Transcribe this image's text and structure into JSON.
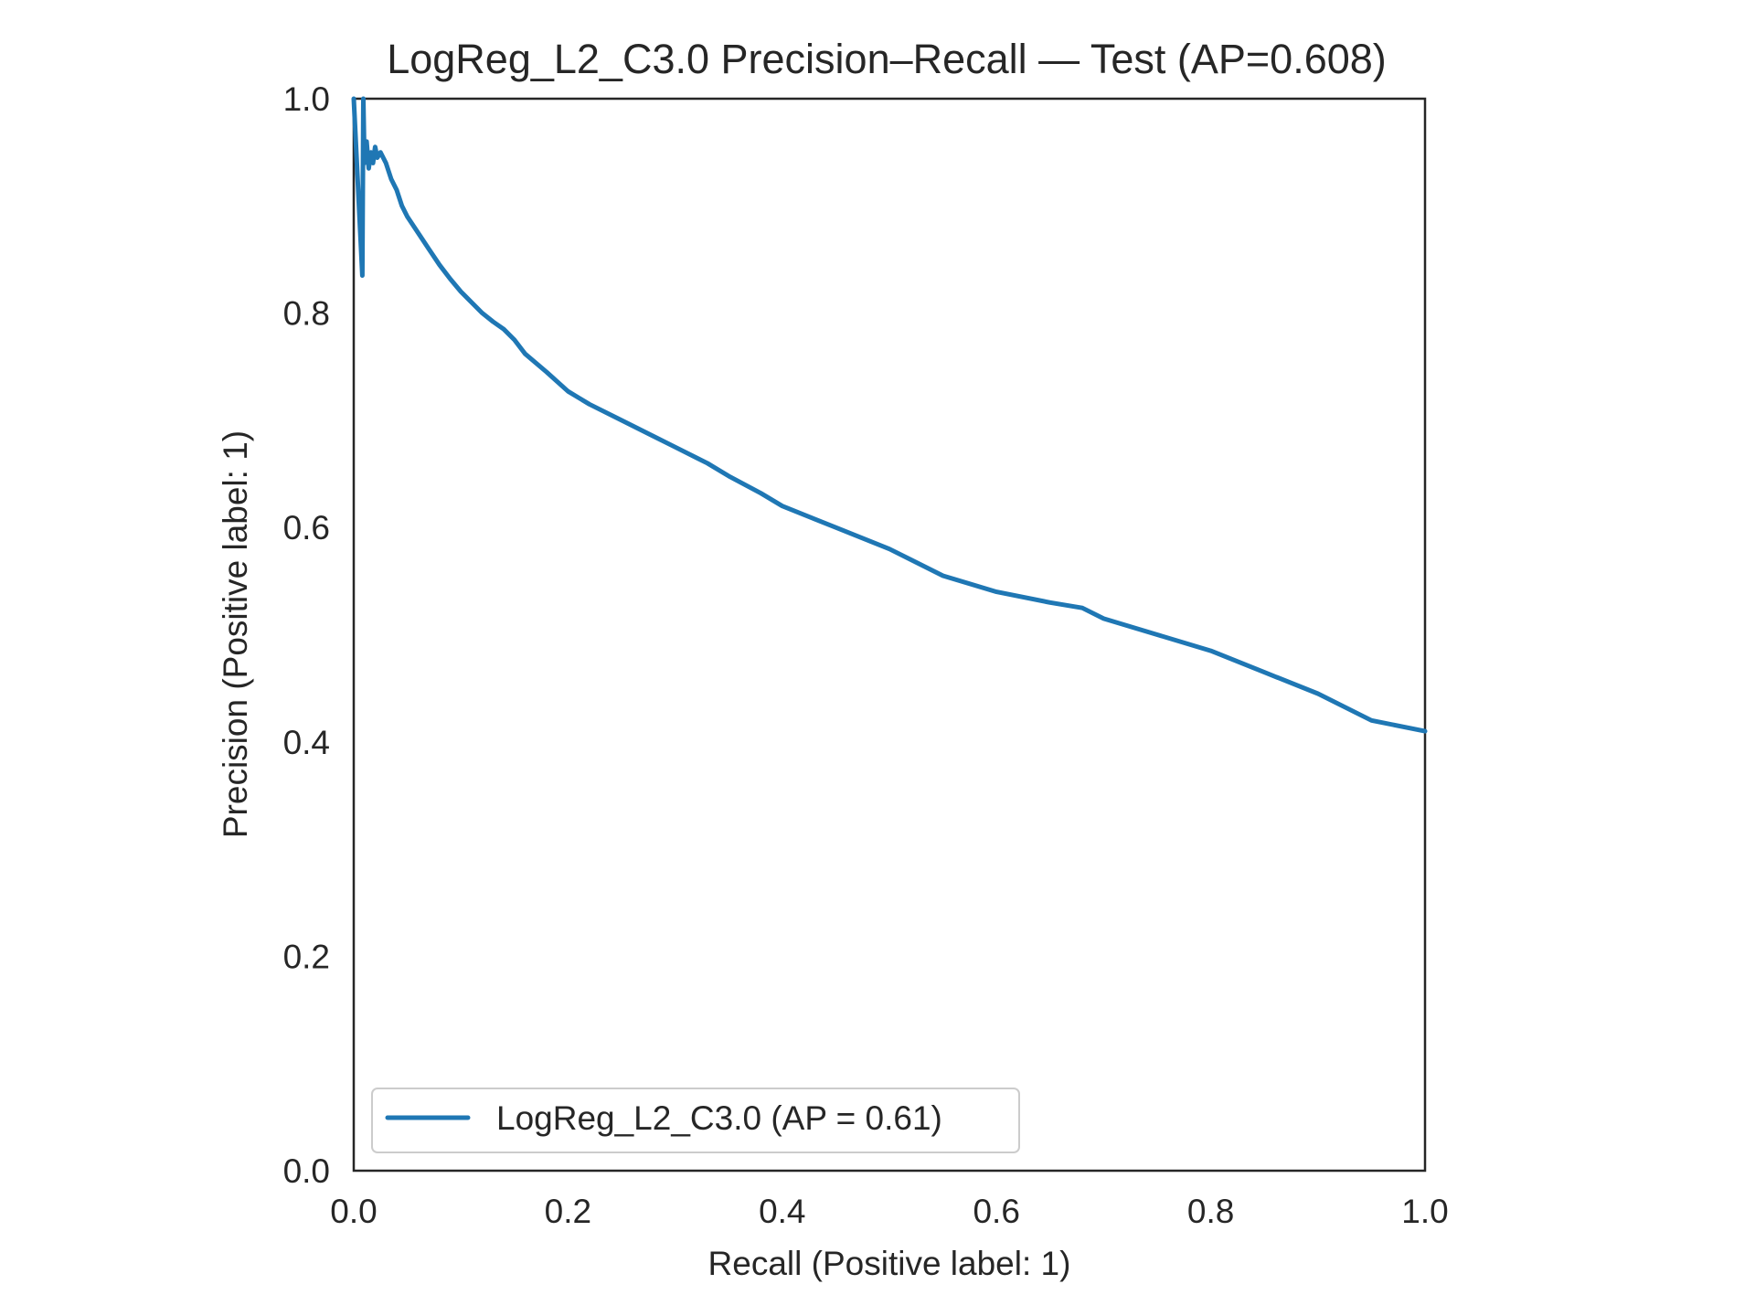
{
  "chart_data": {
    "type": "line",
    "title": "LogReg_L2_C3.0 Precision–Recall — Test (AP=0.608)",
    "xlabel": "Recall (Positive label: 1)",
    "ylabel": "Precision (Positive label: 1)",
    "xlim": [
      0.0,
      1.0
    ],
    "ylim": [
      0.0,
      1.0
    ],
    "xticks": [
      "0.0",
      "0.2",
      "0.4",
      "0.6",
      "0.8",
      "1.0"
    ],
    "yticks": [
      "0.0",
      "0.2",
      "0.4",
      "0.6",
      "0.8",
      "1.0"
    ],
    "grid": false,
    "legend": {
      "placement": "lower-left",
      "entries": [
        "LogReg_L2_C3.0 (AP = 0.61)"
      ]
    },
    "colors": {
      "series": "#1f77b4",
      "axes": "#262626"
    },
    "series": [
      {
        "name": "LogReg_L2_C3.0 (AP = 0.61)",
        "x": [
          0.0,
          0.008,
          0.009,
          0.01,
          0.012,
          0.014,
          0.016,
          0.018,
          0.02,
          0.022,
          0.025,
          0.03,
          0.035,
          0.04,
          0.045,
          0.05,
          0.06,
          0.07,
          0.08,
          0.09,
          0.1,
          0.11,
          0.12,
          0.13,
          0.14,
          0.15,
          0.16,
          0.18,
          0.2,
          0.22,
          0.25,
          0.28,
          0.3,
          0.33,
          0.35,
          0.38,
          0.4,
          0.45,
          0.5,
          0.52,
          0.55,
          0.6,
          0.65,
          0.68,
          0.7,
          0.75,
          0.8,
          0.85,
          0.9,
          0.95,
          1.0
        ],
        "y": [
          1.0,
          0.835,
          1.0,
          0.94,
          0.96,
          0.935,
          0.95,
          0.94,
          0.955,
          0.945,
          0.95,
          0.94,
          0.925,
          0.915,
          0.9,
          0.89,
          0.875,
          0.86,
          0.845,
          0.832,
          0.82,
          0.81,
          0.8,
          0.792,
          0.785,
          0.775,
          0.762,
          0.745,
          0.727,
          0.715,
          0.7,
          0.685,
          0.675,
          0.66,
          0.648,
          0.632,
          0.62,
          0.6,
          0.58,
          0.57,
          0.555,
          0.54,
          0.53,
          0.525,
          0.515,
          0.5,
          0.485,
          0.465,
          0.445,
          0.42,
          0.41
        ]
      }
    ]
  }
}
